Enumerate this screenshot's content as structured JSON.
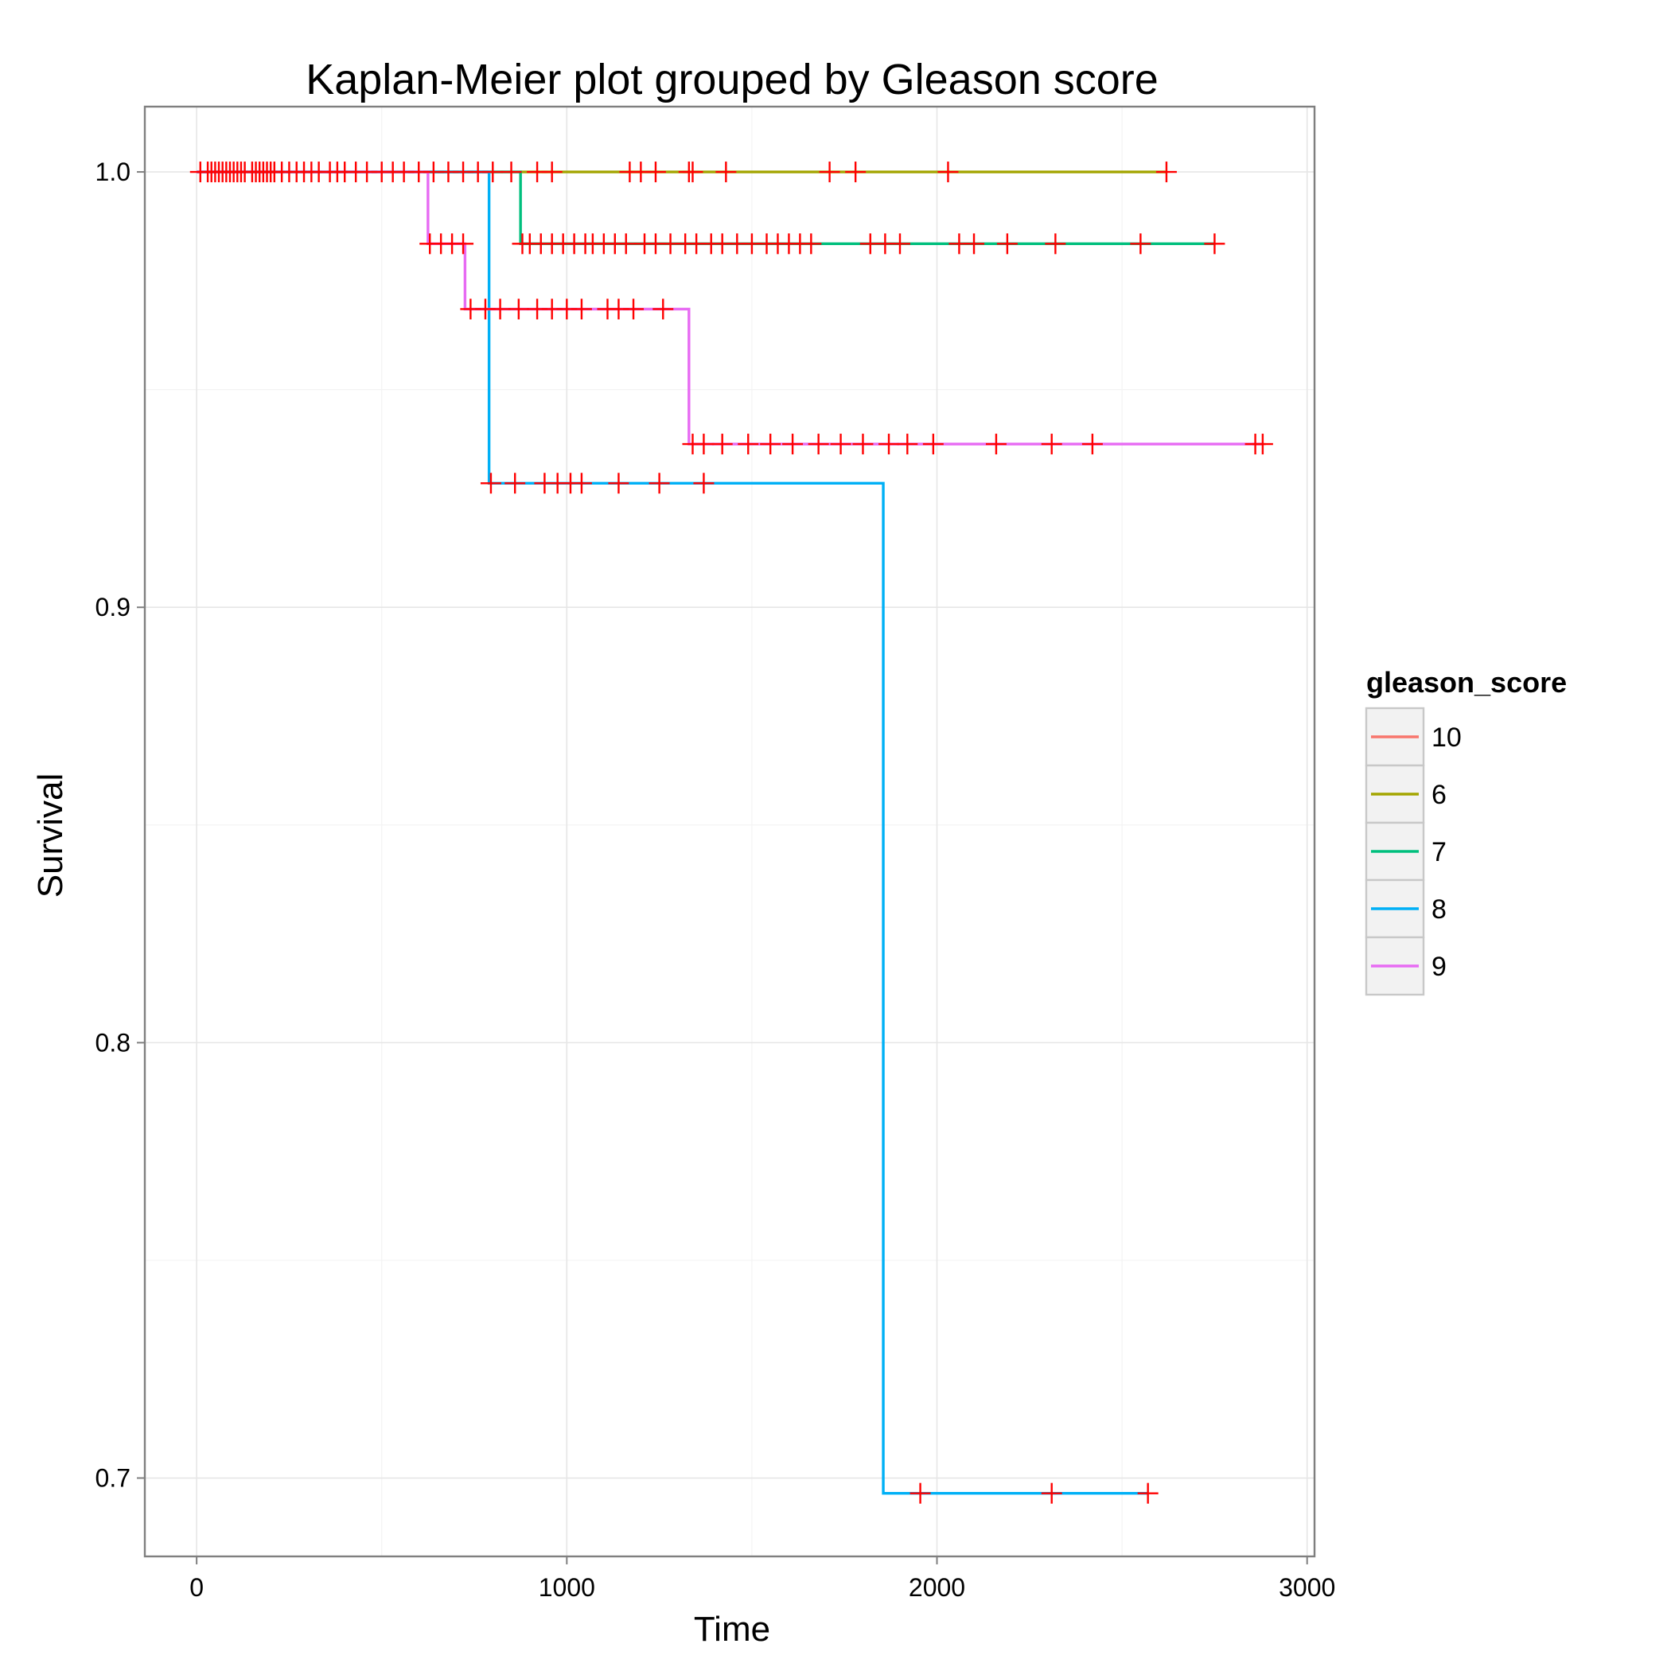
{
  "chart_data": {
    "type": "line",
    "subtype": "kaplan-meier step",
    "title": "Kaplan-Meier plot grouped by Gleason score",
    "xlabel": "Time",
    "ylabel": "Survival",
    "xlim": [
      -140,
      3020
    ],
    "ylim": [
      0.682,
      1.015
    ],
    "x_ticks": [
      0,
      1000,
      2000,
      3000
    ],
    "x_tick_labels": [
      "0",
      "1000",
      "2000",
      "3000"
    ],
    "y_ticks": [
      0.7,
      0.8,
      0.9,
      1.0
    ],
    "y_tick_labels": [
      "0.7",
      "0.8",
      "0.9",
      "1.0"
    ],
    "grid": true,
    "censor_mark": "+",
    "censor_color": "#FF0000",
    "legend": {
      "title": "gleason_score",
      "position": "right",
      "entries": [
        "10",
        "6",
        "7",
        "8",
        "9"
      ]
    },
    "series": [
      {
        "name": "10",
        "color": "#F8766D",
        "steps": [
          [
            0,
            1.0
          ],
          [
            870,
            1.0
          ]
        ],
        "censored": [
          [
            10,
            1.0
          ],
          [
            30,
            1.0
          ],
          [
            40,
            1.0
          ],
          [
            50,
            1.0
          ],
          [
            60,
            1.0
          ],
          [
            70,
            1.0
          ],
          [
            80,
            1.0
          ],
          [
            90,
            1.0
          ],
          [
            100,
            1.0
          ],
          [
            110,
            1.0
          ],
          [
            120,
            1.0
          ],
          [
            130,
            1.0
          ],
          [
            150,
            1.0
          ],
          [
            160,
            1.0
          ],
          [
            170,
            1.0
          ],
          [
            180,
            1.0
          ],
          [
            190,
            1.0
          ],
          [
            200,
            1.0
          ],
          [
            210,
            1.0
          ],
          [
            230,
            1.0
          ],
          [
            250,
            1.0
          ],
          [
            270,
            1.0
          ],
          [
            290,
            1.0
          ],
          [
            310,
            1.0
          ],
          [
            330,
            1.0
          ],
          [
            360,
            1.0
          ],
          [
            380,
            1.0
          ],
          [
            400,
            1.0
          ],
          [
            430,
            1.0
          ],
          [
            460,
            1.0
          ],
          [
            500,
            1.0
          ],
          [
            530,
            1.0
          ],
          [
            560,
            1.0
          ],
          [
            600,
            1.0
          ],
          [
            640,
            1.0
          ],
          [
            680,
            1.0
          ],
          [
            720,
            1.0
          ],
          [
            760,
            1.0
          ],
          [
            800,
            1.0
          ],
          [
            850,
            1.0
          ]
        ]
      },
      {
        "name": "6",
        "color": "#A3A500",
        "steps": [
          [
            870,
            1.0
          ],
          [
            2620,
            1.0
          ]
        ],
        "censored": [
          [
            920,
            1.0
          ],
          [
            960,
            1.0
          ],
          [
            1170,
            1.0
          ],
          [
            1200,
            1.0
          ],
          [
            1240,
            1.0
          ],
          [
            1330,
            1.0
          ],
          [
            1340,
            1.0
          ],
          [
            1430,
            1.0
          ],
          [
            1710,
            1.0
          ],
          [
            1780,
            1.0
          ],
          [
            2030,
            1.0
          ],
          [
            2620,
            1.0
          ]
        ]
      },
      {
        "name": "7",
        "color": "#00BF7D",
        "steps": [
          [
            0,
            1.0
          ],
          [
            875,
            1.0
          ],
          [
            875,
            0.9835
          ],
          [
            2750,
            0.9835
          ]
        ],
        "censored": [
          [
            880,
            0.9835
          ],
          [
            900,
            0.9835
          ],
          [
            930,
            0.9835
          ],
          [
            960,
            0.9835
          ],
          [
            990,
            0.9835
          ],
          [
            1020,
            0.9835
          ],
          [
            1050,
            0.9835
          ],
          [
            1070,
            0.9835
          ],
          [
            1100,
            0.9835
          ],
          [
            1130,
            0.9835
          ],
          [
            1160,
            0.9835
          ],
          [
            1210,
            0.9835
          ],
          [
            1240,
            0.9835
          ],
          [
            1280,
            0.9835
          ],
          [
            1320,
            0.9835
          ],
          [
            1350,
            0.9835
          ],
          [
            1390,
            0.9835
          ],
          [
            1420,
            0.9835
          ],
          [
            1460,
            0.9835
          ],
          [
            1500,
            0.9835
          ],
          [
            1540,
            0.9835
          ],
          [
            1570,
            0.9835
          ],
          [
            1600,
            0.9835
          ],
          [
            1630,
            0.9835
          ],
          [
            1660,
            0.9835
          ],
          [
            1820,
            0.9835
          ],
          [
            1860,
            0.9835
          ],
          [
            1900,
            0.9835
          ],
          [
            2060,
            0.9835
          ],
          [
            2100,
            0.9835
          ],
          [
            2190,
            0.9835
          ],
          [
            2320,
            0.9835
          ],
          [
            2550,
            0.9835
          ],
          [
            2750,
            0.9835
          ]
        ]
      },
      {
        "name": "8",
        "color": "#00B0F6",
        "steps": [
          [
            0,
            1.0
          ],
          [
            790,
            1.0
          ],
          [
            790,
            0.9285
          ],
          [
            1855,
            0.9285
          ],
          [
            1855,
            0.6965
          ],
          [
            2570,
            0.6965
          ]
        ],
        "censored": [
          [
            795,
            0.9285
          ],
          [
            860,
            0.9285
          ],
          [
            940,
            0.9285
          ],
          [
            975,
            0.9285
          ],
          [
            1010,
            0.9285
          ],
          [
            1040,
            0.9285
          ],
          [
            1140,
            0.9285
          ],
          [
            1250,
            0.9285
          ],
          [
            1370,
            0.9285
          ],
          [
            1955,
            0.6965
          ],
          [
            2310,
            0.6965
          ],
          [
            2570,
            0.6965
          ]
        ]
      },
      {
        "name": "9",
        "color": "#E76BF3",
        "steps": [
          [
            0,
            1.0
          ],
          [
            625,
            1.0
          ],
          [
            625,
            0.9835
          ],
          [
            725,
            0.9835
          ],
          [
            725,
            0.9685
          ],
          [
            1330,
            0.9685
          ],
          [
            1330,
            0.9375
          ],
          [
            2880,
            0.9375
          ]
        ],
        "censored": [
          [
            630,
            0.9835
          ],
          [
            660,
            0.9835
          ],
          [
            690,
            0.9835
          ],
          [
            720,
            0.9835
          ],
          [
            740,
            0.9685
          ],
          [
            780,
            0.9685
          ],
          [
            820,
            0.9685
          ],
          [
            870,
            0.9685
          ],
          [
            920,
            0.9685
          ],
          [
            960,
            0.9685
          ],
          [
            1000,
            0.9685
          ],
          [
            1040,
            0.9685
          ],
          [
            1110,
            0.9685
          ],
          [
            1140,
            0.9685
          ],
          [
            1180,
            0.9685
          ],
          [
            1260,
            0.9685
          ],
          [
            1340,
            0.9375
          ],
          [
            1370,
            0.9375
          ],
          [
            1420,
            0.9375
          ],
          [
            1490,
            0.9375
          ],
          [
            1550,
            0.9375
          ],
          [
            1610,
            0.9375
          ],
          [
            1680,
            0.9375
          ],
          [
            1740,
            0.9375
          ],
          [
            1800,
            0.9375
          ],
          [
            1870,
            0.9375
          ],
          [
            1920,
            0.9375
          ],
          [
            1990,
            0.9375
          ],
          [
            2160,
            0.9375
          ],
          [
            2310,
            0.9375
          ],
          [
            2420,
            0.9375
          ],
          [
            2860,
            0.9375
          ],
          [
            2880,
            0.9375
          ]
        ]
      }
    ]
  }
}
